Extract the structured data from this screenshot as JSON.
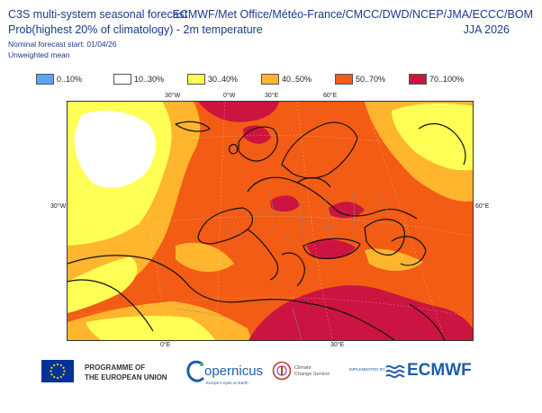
{
  "header": {
    "title_line1": "C3S multi-system seasonal forecast",
    "title_line2": "Prob(highest 20% of climatology) - 2m temperature",
    "forecast_start": "Nominal forecast start: 01/04/26",
    "weighting": "Unweighted mean",
    "centres": "ECMWF/Met Office/Météo-France/CMCC/DWD/NCEP/JMA/ECCC/BOM",
    "season": "JJA 2026"
  },
  "legend": [
    {
      "label": "0..10%",
      "color": "#5aa6f0"
    },
    {
      "label": "10..30%",
      "color": "#ffffff"
    },
    {
      "label": "30..40%",
      "color": "#ffff55"
    },
    {
      "label": "40..50%",
      "color": "#ffb52e"
    },
    {
      "label": "50..70%",
      "color": "#f25c14"
    },
    {
      "label": "70..100%",
      "color": "#cc1440"
    }
  ],
  "map": {
    "grid_labels_top": [
      "30°W",
      "0°W",
      "30°E",
      "60°E"
    ],
    "grid_label_left": "30°W",
    "grid_label_right": "60°E",
    "grid_labels_bottom": [
      "0°E",
      "30°E"
    ]
  },
  "logos": {
    "eu_line1": "PROGRAMME OF",
    "eu_line2": "THE EUROPEAN UNION",
    "copernicus": "opernicus",
    "copernicus_sub": "Europe's eyes on Earth",
    "c3s_line1": "Climate",
    "c3s_line2": "Change Service",
    "implemented_by": "IMPLEMENTED BY",
    "ecmwf": "ECMWF"
  }
}
